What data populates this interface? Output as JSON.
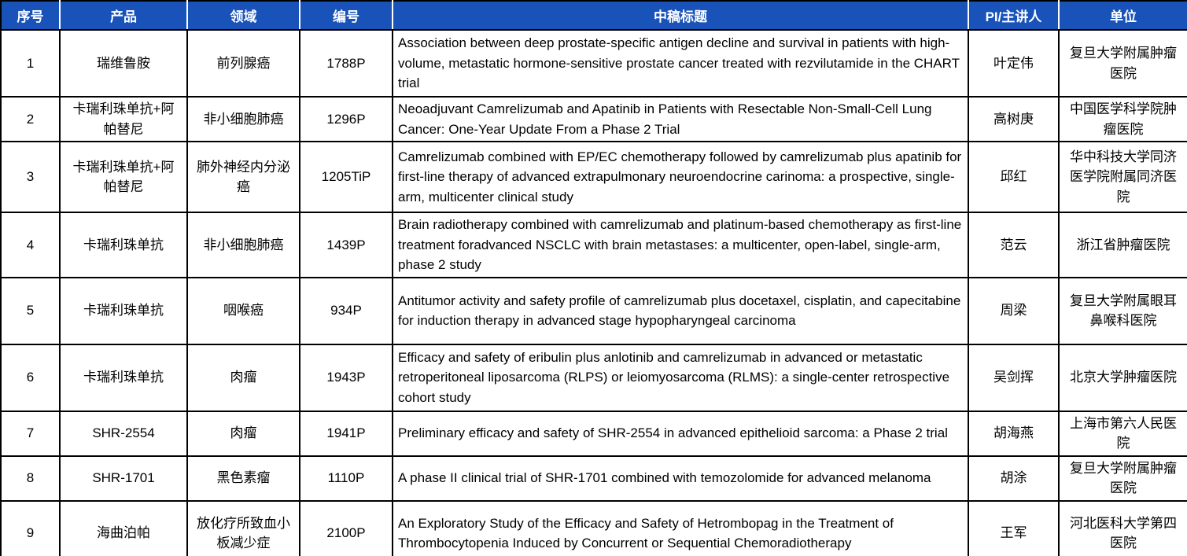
{
  "table": {
    "columns": [
      {
        "key": "index",
        "label": "序号"
      },
      {
        "key": "product",
        "label": "产品"
      },
      {
        "key": "field",
        "label": "领域"
      },
      {
        "key": "code",
        "label": "编号"
      },
      {
        "key": "title",
        "label": "中稿标题"
      },
      {
        "key": "pi",
        "label": "PI/主讲人"
      },
      {
        "key": "org",
        "label": "单位"
      }
    ],
    "rows": [
      {
        "index": "1",
        "product": "瑞维鲁胺",
        "field": "前列腺癌",
        "code": "1788P",
        "title": "Association between deep prostate-specific antigen decline and survival in patients with high-volume, metastatic hormone-sensitive prostate cancer treated with rezvilutamide in the CHART trial",
        "pi": "叶定伟",
        "org": "复旦大学附属肿瘤医院"
      },
      {
        "index": "2",
        "product": "卡瑞利珠单抗+阿帕替尼",
        "field": "非小细胞肺癌",
        "code": "1296P",
        "title": "Neoadjuvant Camrelizumab and Apatinib in Patients with Resectable Non-Small-Cell Lung Cancer: One-Year Update From a Phase 2 Trial",
        "pi": "高树庚",
        "org": "中国医学科学院肿瘤医院"
      },
      {
        "index": "3",
        "product": "卡瑞利珠单抗+阿帕替尼",
        "field": "肺外神经内分泌癌",
        "code": "1205TiP",
        "title": "Camrelizumab combined with EP/EC chemotherapy followed by camrelizumab plus apatinib for first-line therapy of advanced extrapulmonary neuroendocrine carinoma: a prospective, single-arm, multicenter clinical study",
        "pi": "邱红",
        "org": "华中科技大学同济医学院附属同济医院"
      },
      {
        "index": "4",
        "product": "卡瑞利珠单抗",
        "field": "非小细胞肺癌",
        "code": "1439P",
        "title": "Brain radiotherapy combined with camrelizumab and platinum-based chemotherapy as first-line treatment foradvanced NSCLC with brain metastases: a multicenter, open-label, single-arm, phase 2 study",
        "pi": "范云",
        "org": "浙江省肿瘤医院"
      },
      {
        "index": "5",
        "product": "卡瑞利珠单抗",
        "field": "咽喉癌",
        "code": "934P",
        "title": "Antitumor activity and safety profile of camrelizumab plus docetaxel, cisplatin, and capecitabine for induction therapy in advanced stage hypopharyngeal carcinoma",
        "pi": "周梁",
        "org": "复旦大学附属眼耳鼻喉科医院"
      },
      {
        "index": "6",
        "product": "卡瑞利珠单抗",
        "field": "肉瘤",
        "code": "1943P",
        "title": "Efficacy and safety of eribulin plus anlotinib and camrelizumab in advanced or metastatic retroperitoneal liposarcoma (RLPS) or leiomyosarcoma (RLMS): a single-center retrospective cohort study",
        "pi": "吴剑挥",
        "org": "北京大学肿瘤医院"
      },
      {
        "index": "7",
        "product": "SHR-2554",
        "field": "肉瘤",
        "code": "1941P",
        "title": "Preliminary efficacy and safety of SHR-2554 in advanced epithelioid sarcoma: a Phase 2 trial",
        "pi": "胡海燕",
        "org": "上海市第六人民医院"
      },
      {
        "index": "8",
        "product": "SHR-1701",
        "field": "黑色素瘤",
        "code": "1110P",
        "title": "A phase II clinical trial of SHR-1701 combined with temozolomide for advanced melanoma",
        "pi": "胡涂",
        "org": "复旦大学附属肿瘤医院"
      },
      {
        "index": "9",
        "product": "海曲泊帕",
        "field": "放化疗所致血小板减少症",
        "code": "2100P",
        "title": "An Exploratory Study of the Efficacy and Safety of Hetrombopag in the Treatment of Thrombocytopenia Induced by Concurrent or Sequential Chemoradiotherapy",
        "pi": "王军",
        "org": "河北医科大学第四医院"
      }
    ],
    "colors": {
      "header_bg": "#1952B8",
      "header_text": "#FFFFFF",
      "border": "#000000",
      "body_text": "#000000",
      "body_bg": "#FFFFFF"
    }
  }
}
